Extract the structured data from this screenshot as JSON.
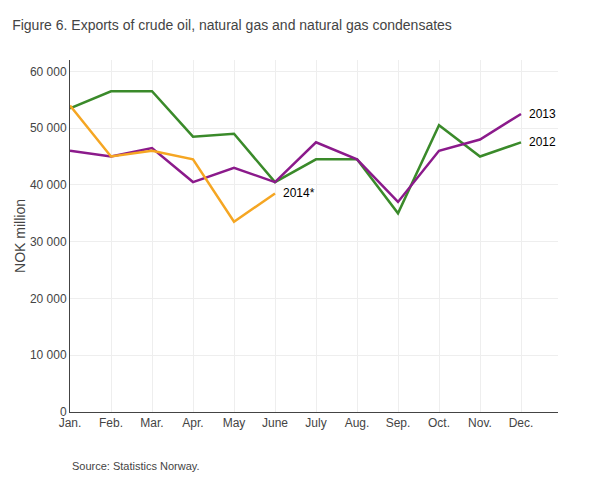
{
  "chart_data": {
    "type": "line",
    "title": "Figure 6. Exports of crude oil, natural gas and natural gas condensates",
    "ylabel": "NOK million",
    "source": "Source: Statistics Norway.",
    "categories": [
      "Jan.",
      "Feb.",
      "Mar.",
      "Apr.",
      "May",
      "June",
      "July",
      "Aug.",
      "Sep.",
      "Oct.",
      "Nov.",
      "Dec."
    ],
    "series": [
      {
        "name": "2012",
        "color": "#3a8a2a",
        "values": [
          53500,
          56500,
          56500,
          48500,
          49000,
          40500,
          44500,
          44500,
          35000,
          50500,
          45000,
          47500
        ]
      },
      {
        "name": "2013",
        "color": "#8b1a8b",
        "values": [
          46000,
          45000,
          46500,
          40500,
          43000,
          40500,
          47500,
          44500,
          37000,
          46000,
          48000,
          52500
        ]
      },
      {
        "name": "2014*",
        "color": "#f5a623",
        "values": [
          54000,
          45000,
          46000,
          44500,
          33500,
          38500,
          null,
          null,
          null,
          null,
          null,
          null
        ]
      }
    ],
    "ylim": [
      0,
      62000
    ],
    "yticks": [
      0,
      {
        "value": 10000,
        "label": "10 000"
      },
      {
        "value": 20000,
        "label": "20 000"
      },
      {
        "value": 30000,
        "label": "30 000"
      },
      {
        "value": 40000,
        "label": "40 000"
      },
      {
        "value": 50000,
        "label": "50 000"
      },
      {
        "value": 60000,
        "label": "60 000"
      }
    ],
    "grid": true
  }
}
